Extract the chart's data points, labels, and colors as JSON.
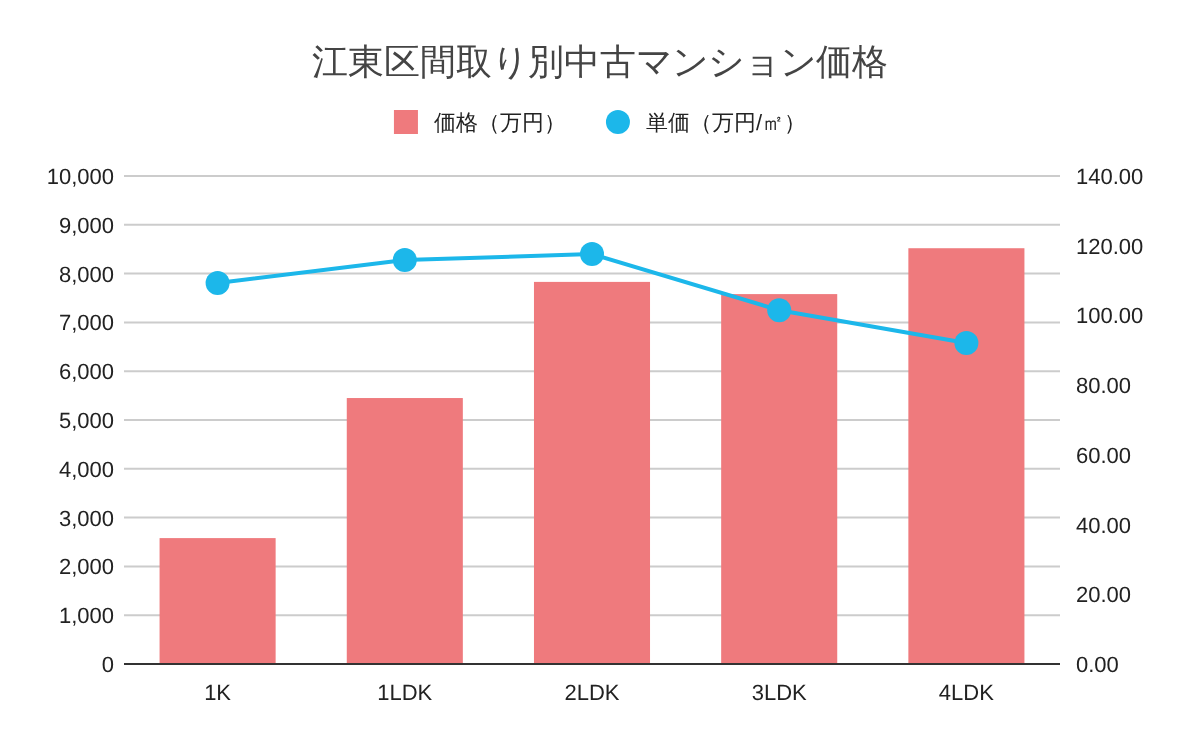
{
  "chart_data": {
    "type": "bar",
    "title": "江東区間取り別中古マンション価格",
    "categories": [
      "1K",
      "1LDK",
      "2LDK",
      "3LDK",
      "4LDK"
    ],
    "series": [
      {
        "name": "価格（万円）",
        "color": "#ef7a7d",
        "values": [
          2580,
          5450,
          7830,
          7580,
          8520
        ]
      },
      {
        "name": "単価（万円/㎡）",
        "type": "line",
        "axis": "y2",
        "color": "#1cb7ea",
        "values": [
          109.3,
          115.9,
          117.6,
          101.5,
          92.1
        ]
      }
    ],
    "ylim": [
      0,
      10000
    ],
    "yticks": [
      {
        "value": 0,
        "label": "0"
      },
      {
        "value": 1000,
        "label": "1,000"
      },
      {
        "value": 2000,
        "label": "2,000"
      },
      {
        "value": 3000,
        "label": "3,000"
      },
      {
        "value": 4000,
        "label": "4,000"
      },
      {
        "value": 5000,
        "label": "5,000"
      },
      {
        "value": 6000,
        "label": "6,000"
      },
      {
        "value": 7000,
        "label": "7,000"
      },
      {
        "value": 8000,
        "label": "8,000"
      },
      {
        "value": 9000,
        "label": "9,000"
      },
      {
        "value": 10000,
        "label": "10,000"
      }
    ],
    "y2lim": [
      0,
      140
    ],
    "y2ticks": [
      {
        "value": 0,
        "label": "0.00"
      },
      {
        "value": 20,
        "label": "20.00"
      },
      {
        "value": 40,
        "label": "40.00"
      },
      {
        "value": 60,
        "label": "60.00"
      },
      {
        "value": 80,
        "label": "80.00"
      },
      {
        "value": 100,
        "label": "100.00"
      },
      {
        "value": 120,
        "label": "120.00"
      },
      {
        "value": 140,
        "label": "140.00"
      }
    ],
    "grid": "y",
    "legend": "top",
    "marker": "circle",
    "line_style": "solid"
  }
}
